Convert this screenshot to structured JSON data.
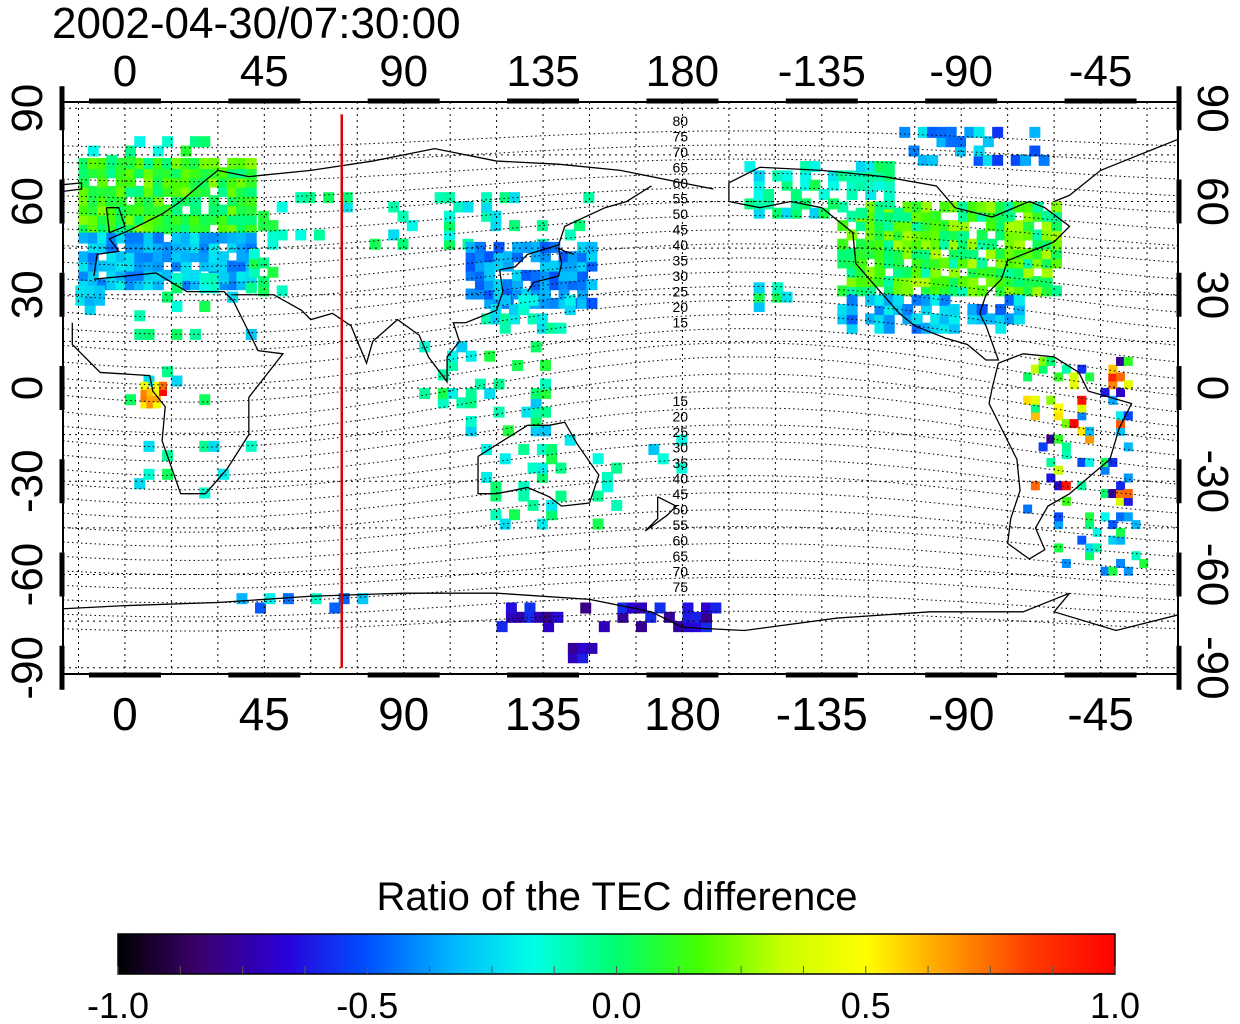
{
  "timestamp": "2002-04-30/07:30:00",
  "map": {
    "lon_ticks": [
      "0",
      "45",
      "90",
      "135",
      "180",
      "-135",
      "-90",
      "-45"
    ],
    "lat_ticks": [
      "90",
      "60",
      "30",
      "0",
      "-30",
      "-60",
      "-90"
    ],
    "lon_values": [
      0,
      45,
      90,
      135,
      180,
      225,
      270,
      315
    ],
    "lat_values": [
      90,
      60,
      30,
      0,
      -30,
      -60,
      -90
    ],
    "lon_range": [
      -20,
      340
    ],
    "lat_range": [
      -92,
      92
    ],
    "grid": true,
    "marker_line_lon": 70,
    "marker_line_color": "#dd0000",
    "contour_labels_north": [
      "80",
      "75",
      "70",
      "65",
      "60",
      "55",
      "50",
      "45",
      "40",
      "35",
      "30",
      "25",
      "20",
      "15"
    ],
    "contour_labels_south": [
      "15",
      "20",
      "25",
      "30",
      "35",
      "40",
      "45",
      "50",
      "55",
      "60",
      "65",
      "70",
      "75"
    ]
  },
  "colorbar": {
    "title": "Ratio of the TEC difference",
    "ticks": [
      "-1.0",
      "-0.5",
      "0.0",
      "0.5",
      "1.0"
    ],
    "range": [
      -1.0,
      1.0
    ],
    "colors": [
      "#000000",
      "#3c0070",
      "#2a00d8",
      "#0050ff",
      "#00b4ff",
      "#00ffe6",
      "#00ff6e",
      "#46ff00",
      "#c8ff00",
      "#ffff00",
      "#ff9a00",
      "#ff3a00",
      "#ff0000"
    ]
  }
}
